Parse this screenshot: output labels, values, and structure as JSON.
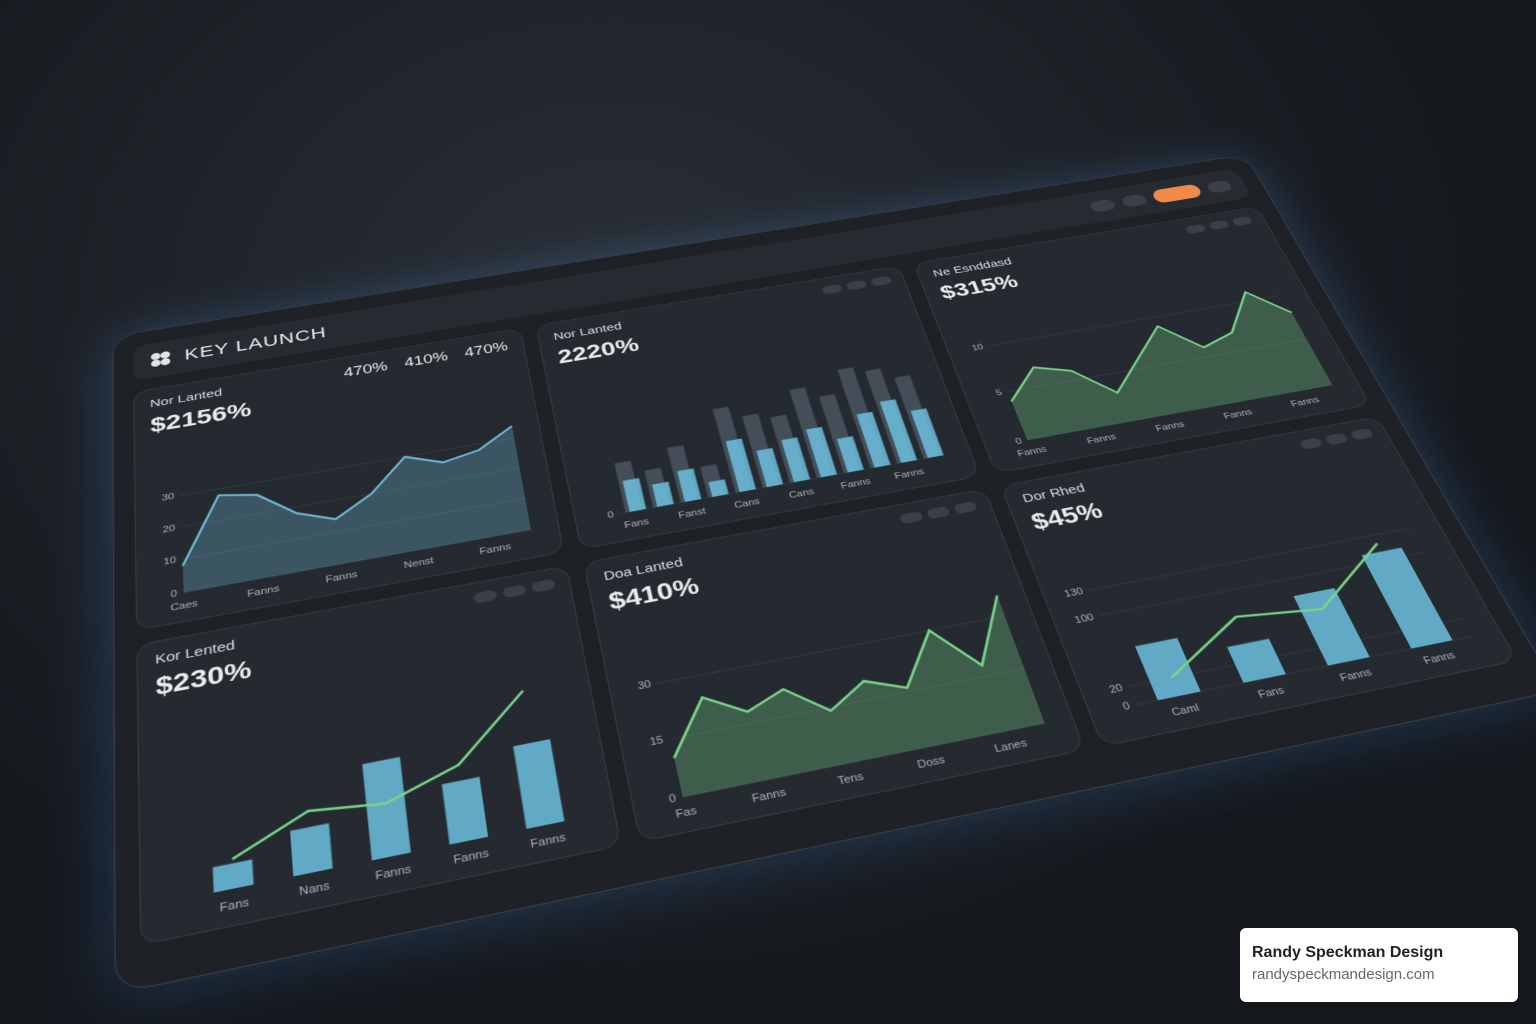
{
  "header": {
    "title": "KEY LAUNCH"
  },
  "panels": [
    {
      "title": "Nor Lanted",
      "value": "$2156%",
      "stats": [
        "470%",
        "410%",
        "470%"
      ],
      "chart": {
        "type": "area",
        "ylim": [
          0,
          40
        ],
        "yticks": [
          0,
          10,
          20,
          30
        ],
        "categories": [
          "Caes",
          null,
          "Fanns",
          null,
          "Fanns",
          null,
          "Nenst",
          null,
          "Fanns",
          null
        ],
        "series": [
          {
            "color": "#6fb8d6",
            "values": [
              8,
              28,
              26,
              18,
              14,
              20,
              30,
              26,
              28,
              34
            ]
          }
        ]
      }
    },
    {
      "title": "Nor Lanted",
      "value": "2220%",
      "chart": {
        "type": "bar",
        "ylim": [
          0,
          100
        ],
        "yticks": [
          0
        ],
        "categories": [
          "Fans",
          null,
          "Fanst",
          null,
          "Cans",
          null,
          "Cans",
          null,
          "Fanns",
          null,
          "Fanns",
          null
        ],
        "series": [
          {
            "color": "#4a5560",
            "values": [
              40,
              30,
              45,
              25,
              70,
              60,
              55,
              75,
              65,
              85,
              80,
              70
            ]
          },
          {
            "color": "#6cc0de",
            "values": [
              25,
              18,
              25,
              12,
              42,
              30,
              35,
              40,
              28,
              45,
              52,
              40
            ]
          }
        ]
      }
    },
    {
      "title": "Ne Esnddasd",
      "value": "$315%",
      "chart": {
        "type": "area",
        "ylim": [
          0,
          12
        ],
        "yticks": [
          0,
          5,
          10
        ],
        "categories": [
          "Fanns",
          null,
          "Fanns",
          null,
          "Fanns",
          null,
          "Fanns",
          null,
          "Fanns",
          null
        ],
        "series": [
          {
            "color": "#7ad58a",
            "values": [
              4,
              7,
              6,
              3,
              6,
              9,
              6,
              7,
              11,
              8
            ]
          }
        ]
      }
    },
    {
      "title": "Kor Lented",
      "value": "$230%",
      "chart": {
        "type": "combo",
        "ylim": [
          0,
          80
        ],
        "categories": [
          "Fans",
          "Nans",
          "Fanns",
          "Fanns",
          "Fanns"
        ],
        "series": [
          {
            "type": "bar",
            "color": "#6cc0de",
            "values": [
              12,
              22,
              48,
              30,
              42
            ]
          },
          {
            "type": "line",
            "color": "#7ad58a",
            "values": [
              14,
              30,
              26,
              38,
              70
            ]
          }
        ]
      }
    },
    {
      "title": "Doa Lanted",
      "value": "$410%",
      "chart": {
        "type": "area",
        "ylim": [
          0,
          40
        ],
        "yticks": [
          0,
          15,
          30
        ],
        "categories": [
          "Fas",
          null,
          "Fanns",
          null,
          "Tens",
          null,
          "Doss",
          null,
          "Lanes",
          null
        ],
        "series": [
          {
            "color": "#7ad58a",
            "values": [
              10,
              24,
              18,
              22,
              14,
              20,
              16,
              30,
              18,
              36
            ]
          }
        ]
      }
    },
    {
      "title": "Dor Rhed",
      "value": "$45%",
      "chart": {
        "type": "combo",
        "ylim": [
          0,
          160
        ],
        "yticks": [
          0,
          20,
          100,
          130
        ],
        "categories": [
          "Caml",
          "Fans",
          "Fanns",
          "Fanns"
        ],
        "series": [
          {
            "type": "bar",
            "color": "#6cc0de",
            "values": [
              60,
              40,
              80,
              110
            ]
          },
          {
            "type": "line",
            "color": "#7ad58a",
            "values": [
              20,
              70,
              60,
              120
            ]
          }
        ]
      }
    }
  ],
  "footer": {
    "name": "Randy Speckman Design",
    "url": "randyspeckmandesign.com"
  }
}
